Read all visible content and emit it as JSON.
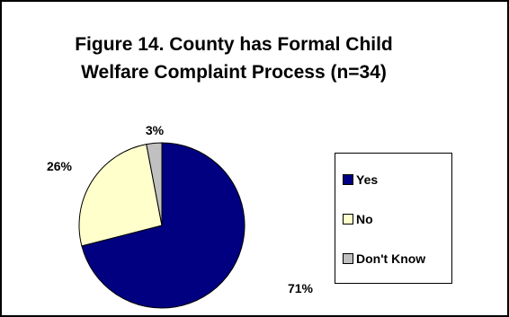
{
  "chart_data": {
    "type": "pie",
    "title": "Figure 14. County has Formal Child Welfare Complaint Process (n=34)",
    "title_lines": [
      "Figure 14. County has Formal Child",
      "Welfare Complaint Process (n=34)"
    ],
    "slices": [
      {
        "label": "Yes",
        "value": 71,
        "value_label": "71%",
        "color": "#000080"
      },
      {
        "label": "No",
        "value": 26,
        "value_label": "26%",
        "color": "#FFFFCC"
      },
      {
        "label": "Don't Know",
        "value": 3,
        "value_label": "3%",
        "color": "#C0C0C0"
      }
    ],
    "start_angle_deg": 0,
    "direction": "clockwise",
    "legend_position": "right",
    "slice_outline": "#000000"
  }
}
